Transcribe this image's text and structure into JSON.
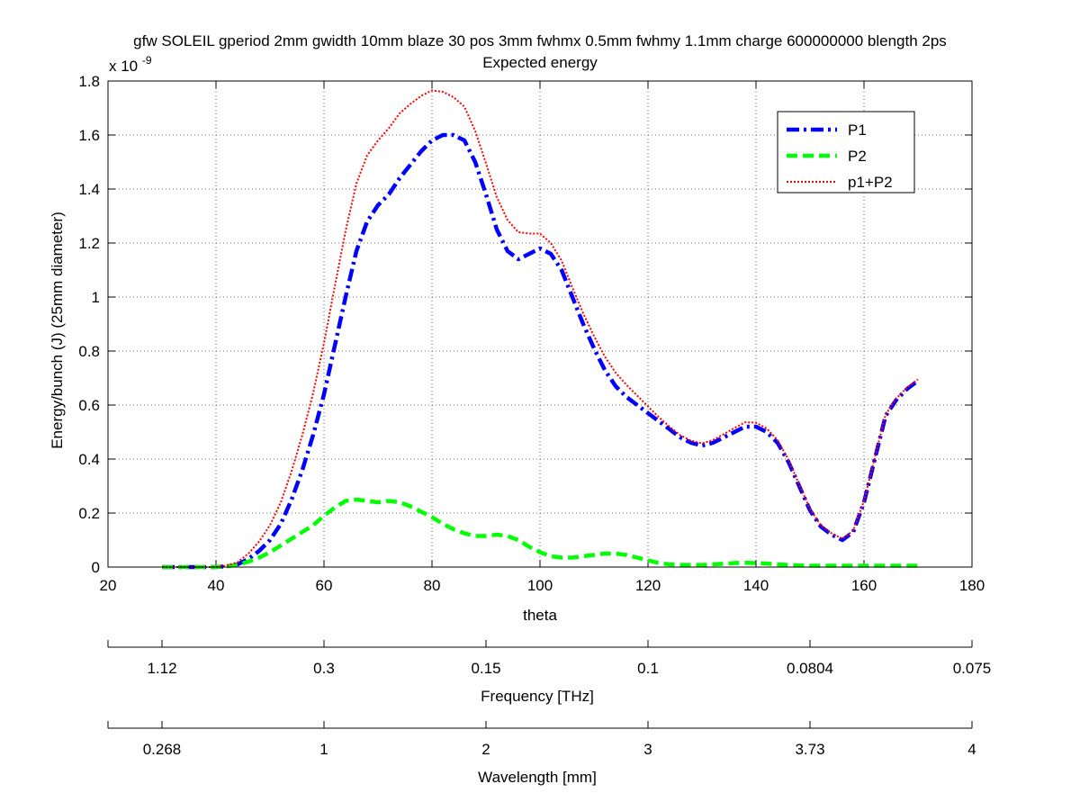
{
  "chart_data": {
    "type": "line",
    "title": "gfw SOLEIL gperiod 2mm gwidth 10mm blaze 30 pos 3mm fwhmx 0.5mm fwhmy 1.1mm charge 600000000 blength 2ps",
    "subtitle": "Expected energy",
    "xlabel": "theta",
    "ylabel": "Energy/bunch (J) (25mm diameter)",
    "y_multiplier": "x 10",
    "y_multiplier_exponent": "-9",
    "xlim": [
      20,
      180
    ],
    "ylim": [
      0,
      1.8
    ],
    "xticks": [
      20,
      40,
      60,
      80,
      100,
      120,
      140,
      160,
      180
    ],
    "xtick_labels": [
      "20",
      "40",
      "60",
      "80",
      "100",
      "120",
      "140",
      "160",
      "180"
    ],
    "yticks": [
      0,
      0.2,
      0.4,
      0.6,
      0.8,
      1.0,
      1.2,
      1.4,
      1.6,
      1.8
    ],
    "ytick_labels": [
      "0",
      "0.2",
      "0.4",
      "0.6",
      "0.8",
      "1",
      "1.2",
      "1.4",
      "1.6",
      "1.8"
    ],
    "grid": true,
    "legend_position": "top-right",
    "x": [
      30,
      35,
      40,
      42,
      44,
      46,
      48,
      50,
      52,
      54,
      56,
      58,
      60,
      62,
      64,
      66,
      68,
      70,
      72,
      74,
      76,
      78,
      80,
      82,
      84,
      86,
      88,
      90,
      92,
      94,
      96,
      98,
      100,
      102,
      104,
      106,
      108,
      110,
      112,
      114,
      116,
      118,
      120,
      122,
      124,
      126,
      128,
      130,
      132,
      134,
      136,
      138,
      140,
      142,
      144,
      146,
      148,
      150,
      152,
      154,
      156,
      158,
      160,
      162,
      164,
      166,
      168,
      170
    ],
    "series": [
      {
        "name": "P1",
        "color": "#0000ff",
        "dash": "dash-dot",
        "values": [
          0,
          0,
          0,
          0.003,
          0.01,
          0.03,
          0.06,
          0.1,
          0.16,
          0.25,
          0.36,
          0.49,
          0.64,
          0.82,
          1.0,
          1.17,
          1.28,
          1.34,
          1.38,
          1.44,
          1.49,
          1.54,
          1.58,
          1.6,
          1.6,
          1.58,
          1.5,
          1.38,
          1.25,
          1.17,
          1.14,
          1.16,
          1.18,
          1.16,
          1.1,
          1.0,
          0.9,
          0.81,
          0.73,
          0.67,
          0.63,
          0.6,
          0.57,
          0.54,
          0.51,
          0.48,
          0.46,
          0.45,
          0.46,
          0.48,
          0.5,
          0.52,
          0.52,
          0.5,
          0.46,
          0.39,
          0.3,
          0.21,
          0.15,
          0.12,
          0.1,
          0.13,
          0.24,
          0.4,
          0.56,
          0.62,
          0.66,
          0.69
        ]
      },
      {
        "name": "P2",
        "color": "#00ff00",
        "dash": "dashed",
        "values": [
          0,
          0,
          0,
          0.003,
          0.008,
          0.02,
          0.035,
          0.055,
          0.08,
          0.105,
          0.13,
          0.155,
          0.19,
          0.22,
          0.245,
          0.25,
          0.245,
          0.24,
          0.245,
          0.24,
          0.225,
          0.205,
          0.185,
          0.16,
          0.14,
          0.125,
          0.115,
          0.115,
          0.12,
          0.115,
          0.1,
          0.075,
          0.055,
          0.04,
          0.035,
          0.035,
          0.04,
          0.045,
          0.05,
          0.05,
          0.045,
          0.035,
          0.025,
          0.015,
          0.01,
          0.008,
          0.008,
          0.008,
          0.01,
          0.012,
          0.015,
          0.016,
          0.015,
          0.013,
          0.01,
          0.008,
          0.006,
          0.005,
          0.005,
          0.005,
          0.005,
          0.005,
          0.005,
          0.005,
          0.005,
          0.005,
          0.005,
          0.005
        ]
      },
      {
        "name": "p1+P2",
        "color": "#ff0000",
        "dash": "dotted",
        "values": [
          0,
          0,
          0,
          0.006,
          0.018,
          0.05,
          0.095,
          0.155,
          0.24,
          0.355,
          0.49,
          0.645,
          0.83,
          1.04,
          1.245,
          1.42,
          1.525,
          1.58,
          1.625,
          1.68,
          1.715,
          1.745,
          1.765,
          1.76,
          1.74,
          1.705,
          1.615,
          1.495,
          1.37,
          1.285,
          1.24,
          1.235,
          1.235,
          1.2,
          1.135,
          1.035,
          0.94,
          0.855,
          0.78,
          0.72,
          0.675,
          0.635,
          0.595,
          0.555,
          0.52,
          0.488,
          0.468,
          0.458,
          0.47,
          0.492,
          0.515,
          0.536,
          0.535,
          0.513,
          0.47,
          0.398,
          0.306,
          0.215,
          0.155,
          0.125,
          0.105,
          0.135,
          0.245,
          0.405,
          0.565,
          0.625,
          0.665,
          0.695
        ]
      }
    ],
    "frequency_axis": {
      "label": "Frequency [THz]",
      "theta_positions": [
        30,
        60,
        90,
        120,
        150,
        180
      ],
      "tick_labels": [
        "1.12",
        "0.3",
        "0.15",
        "0.1",
        "0.0804",
        "0.075"
      ]
    },
    "wavelength_axis": {
      "label": "Wavelength [mm]",
      "theta_positions": [
        30,
        60,
        90,
        120,
        150,
        180
      ],
      "tick_labels": [
        "0.268",
        "1",
        "2",
        "3",
        "3.73",
        "4"
      ]
    }
  }
}
